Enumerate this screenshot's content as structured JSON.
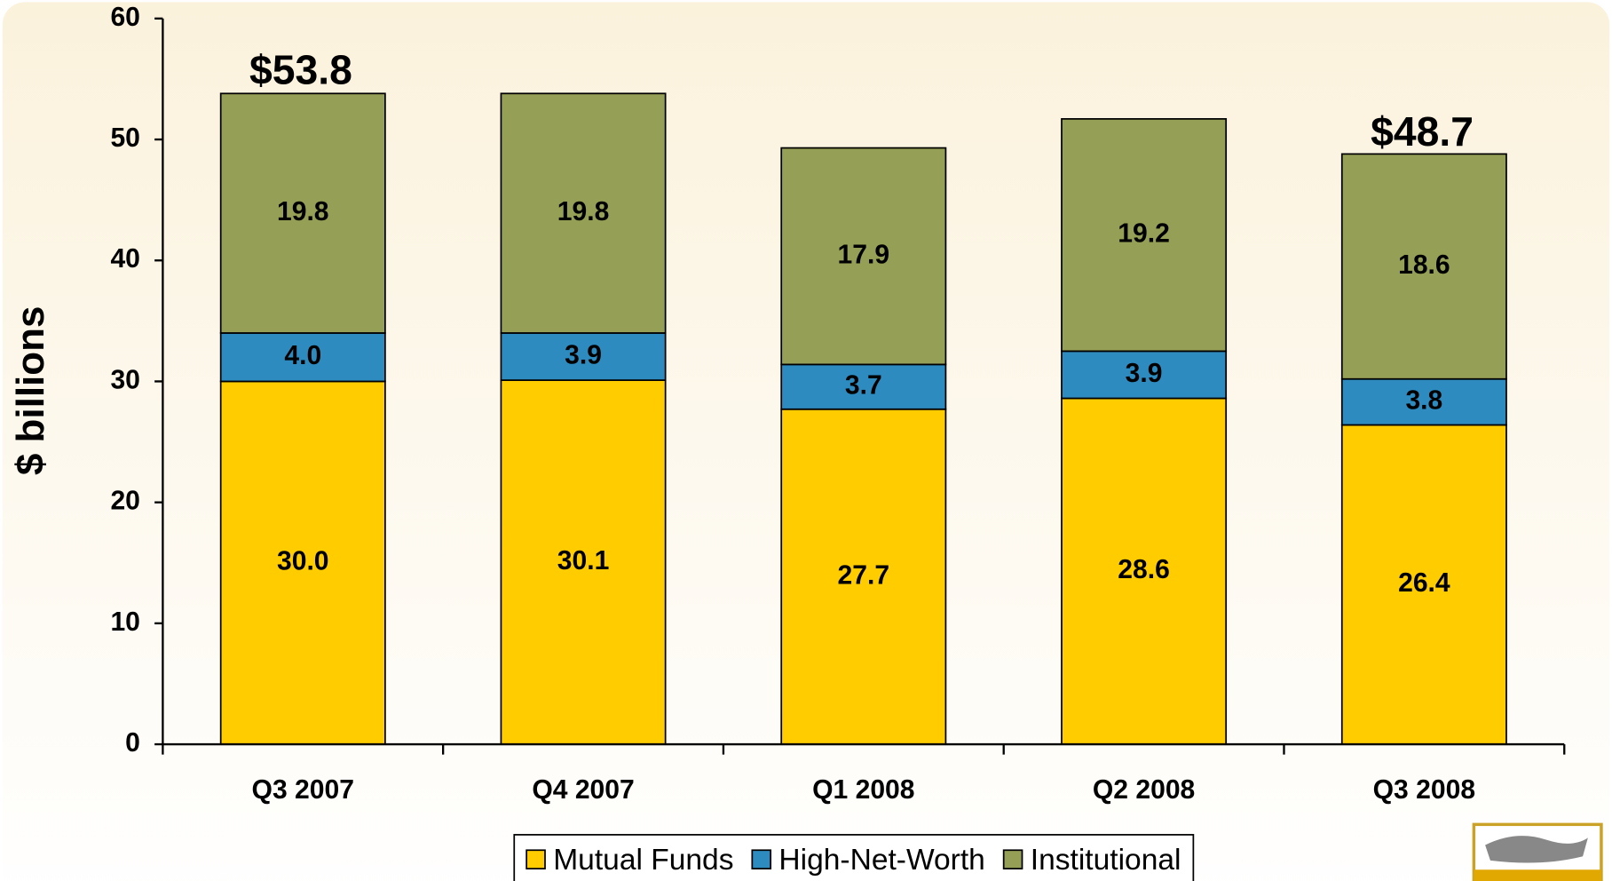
{
  "chart_data": {
    "type": "stacked_bar",
    "categories": [
      "Q3 2007",
      "Q4 2007",
      "Q1 2008",
      "Q2 2008",
      "Q3 2008"
    ],
    "series": [
      {
        "name": "Mutual Funds",
        "color": "#ffcc00",
        "values": [
          30.0,
          30.1,
          27.7,
          28.6,
          26.4
        ],
        "value_labels": [
          "30.0",
          "30.1",
          "27.7",
          "28.6",
          "26.4"
        ]
      },
      {
        "name": "High-Net-Worth",
        "color": "#2e8bc0",
        "values": [
          4.0,
          3.9,
          3.7,
          3.9,
          3.8
        ],
        "value_labels": [
          "4.0",
          "3.9",
          "3.7",
          "3.9",
          "3.8"
        ]
      },
      {
        "name": "Institutional",
        "color": "#969f56",
        "values": [
          19.8,
          19.8,
          17.9,
          19.2,
          18.6
        ],
        "value_labels": [
          "19.8",
          "19.8",
          "17.9",
          "19.2",
          "18.6"
        ]
      }
    ],
    "y_label": "$ billions",
    "ylim": [
      0,
      60
    ],
    "yticks": [
      0,
      10,
      20,
      30,
      40,
      50,
      60
    ],
    "annotations": [
      {
        "text": "$53.8",
        "value": 53.8,
        "category": "Q3 2007"
      },
      {
        "text": "$48.7",
        "value": 48.7,
        "category": "Q3 2008"
      }
    ],
    "legend": "bottom"
  }
}
